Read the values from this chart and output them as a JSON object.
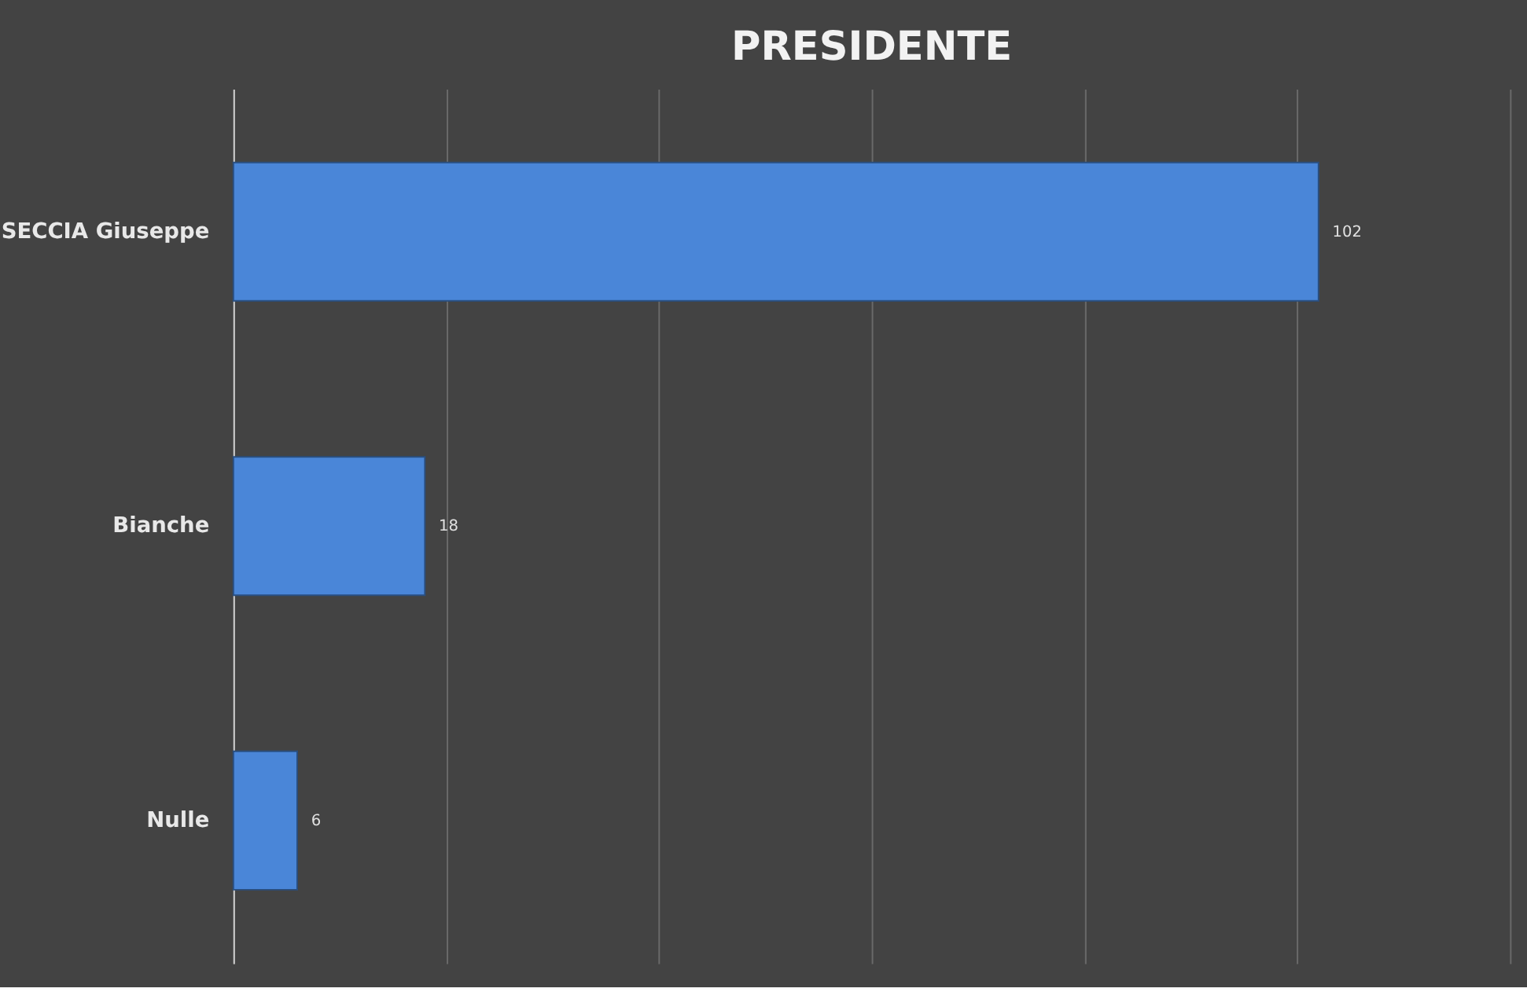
{
  "chart_data": {
    "type": "bar",
    "orientation": "horizontal",
    "title": "PRESIDENTE",
    "categories": [
      "SECCIA Giuseppe",
      "Bianche",
      "Nulle"
    ],
    "values": [
      102,
      18,
      6
    ],
    "color": "#4a86d8",
    "xlim": [
      0,
      120
    ],
    "xticks": [
      {
        "value": 0,
        "label": null
      },
      {
        "value": 20,
        "label": null
      },
      {
        "value": 40,
        "label": null
      },
      {
        "value": 60,
        "label": null
      },
      {
        "value": 80,
        "label": null
      },
      {
        "value": 100,
        "label": null
      },
      {
        "value": 120,
        "label": null
      }
    ],
    "tick_labels": "y",
    "grid": "x",
    "data_labels": true
  }
}
